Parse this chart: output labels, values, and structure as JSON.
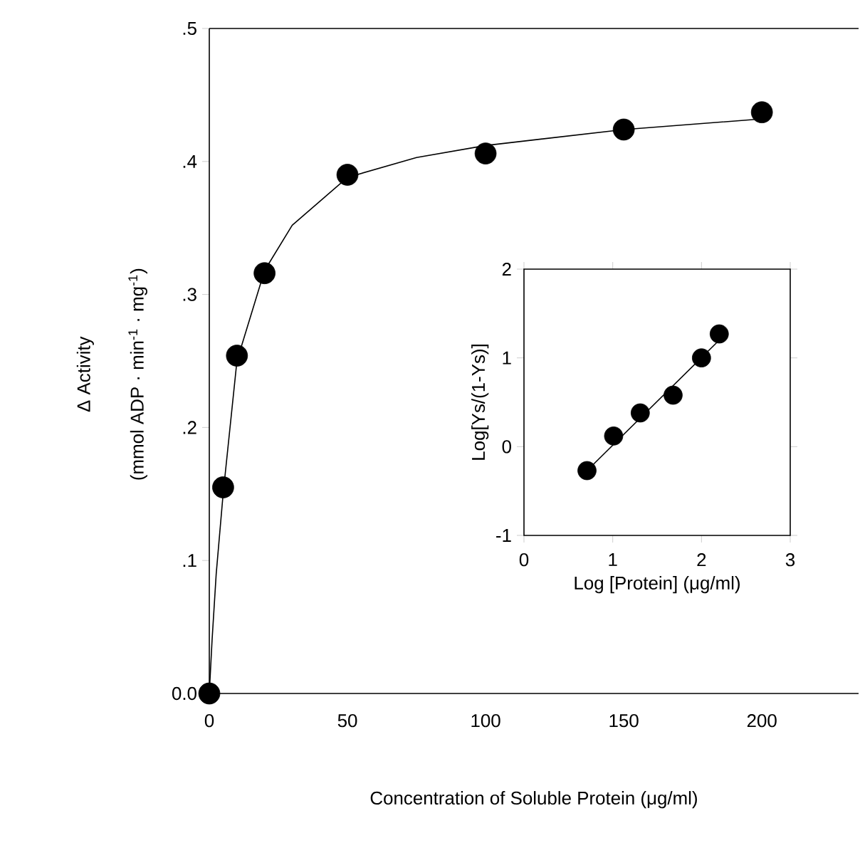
{
  "chart_data": [
    {
      "type": "scatter",
      "xlabel": "Concentration of Soluble Protein (μg/ml)",
      "ylabel": "Δ Activity",
      "annotations": [
        "(mmol ADP · min$^{-1}$ · mg$^{-1}$)"
      ],
      "xlim": [
        0,
        235
      ],
      "ylim": [
        0,
        0.5
      ],
      "xticks": [
        0,
        50,
        100,
        150,
        200
      ],
      "yticks": [
        {
          "value": 0,
          "label": "0.0"
        },
        {
          "value": 0.1,
          "label": ".1"
        },
        {
          "value": 0.2,
          "label": ".2"
        },
        {
          "value": 0.3,
          "label": ".3"
        },
        {
          "value": 0.4,
          "label": ".4"
        },
        {
          "value": 0.5,
          "label": ".5"
        }
      ],
      "series": [
        {
          "type": "line",
          "color": "#000000",
          "marker": "none",
          "x": [
            0,
            1,
            2.5,
            5,
            10,
            20,
            30,
            50,
            75,
            100,
            150,
            200
          ],
          "values": [
            0,
            0.04,
            0.09,
            0.15,
            0.25,
            0.318,
            0.352,
            0.388,
            0.403,
            0.412,
            0.424,
            0.432
          ]
        },
        {
          "color": "#000000",
          "marker": "circle",
          "x": [
            0,
            5,
            10,
            20,
            50,
            100,
            150,
            200
          ],
          "values": [
            0,
            0.155,
            0.254,
            0.316,
            0.39,
            0.406,
            0.424,
            0.437
          ]
        }
      ]
    },
    {
      "type": "scatter",
      "xlabel": "Log [Protein] (μg/ml)",
      "ylabel": "Log[Ys/(1-Ys)]",
      "xlim": [
        0,
        3
      ],
      "ylim": [
        -1,
        2
      ],
      "xticks": [
        0,
        1,
        2,
        3
      ],
      "yticks": [
        -1,
        0,
        1,
        2
      ],
      "series": [
        {
          "type": "line",
          "color": "#000000",
          "marker": "none",
          "x": [
            0.7,
            2.2
          ],
          "values": [
            -0.28,
            1.2
          ]
        },
        {
          "color": "#000000",
          "marker": "circle",
          "x": [
            0.71,
            1.01,
            1.31,
            1.68,
            2.0,
            2.2
          ],
          "values": [
            -0.27,
            0.12,
            0.38,
            0.58,
            1.0,
            1.27
          ]
        }
      ]
    }
  ]
}
